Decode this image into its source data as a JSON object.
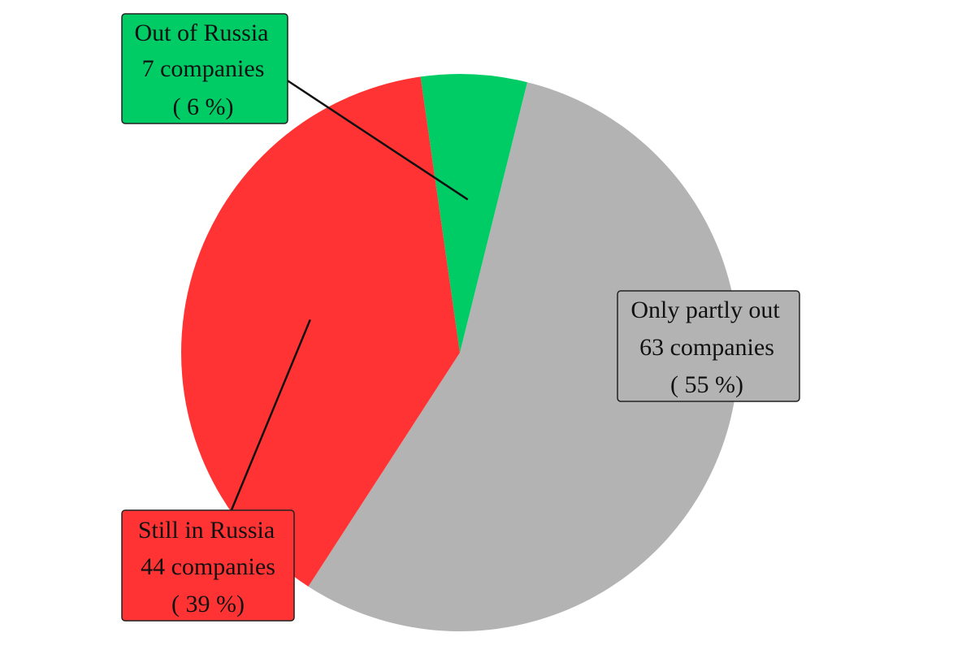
{
  "chart_data": {
    "type": "pie",
    "title": "",
    "slices": [
      {
        "category": "Only partly out",
        "value": 63,
        "count_text": "63 companies",
        "percent_text": "( 55 %)",
        "color": "#b3b3b3"
      },
      {
        "category": "Still in Russia",
        "value": 44,
        "count_text": "44 companies",
        "percent_text": "( 39 %)",
        "color": "#ff3333"
      },
      {
        "category": "Out of Russia",
        "value": 7,
        "count_text": "7 companies",
        "percent_text": "( 6 %)",
        "color": "#00cc66"
      }
    ],
    "grid": false,
    "legend": "none"
  }
}
